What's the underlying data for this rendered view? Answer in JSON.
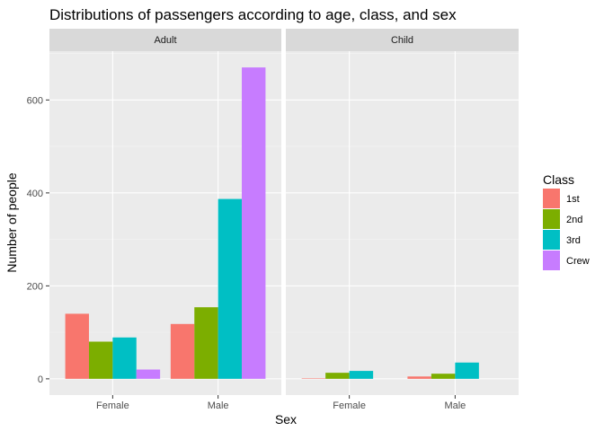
{
  "chart_data": {
    "type": "bar",
    "title": "Distributions of passengers according to age, class, and sex",
    "xlabel": "Sex",
    "ylabel": "Number of people",
    "ylim": [
      -35,
      705
    ],
    "yticks": [
      0,
      200,
      400,
      600
    ],
    "grid": true,
    "legend": {
      "title": "Class",
      "placement": "right"
    },
    "categories": [
      "Female",
      "Male"
    ],
    "facets": [
      {
        "label": "Adult",
        "series": [
          {
            "name": "1st",
            "color": "#F8766D",
            "values": [
              140,
              118
            ]
          },
          {
            "name": "2nd",
            "color": "#7CAE00",
            "values": [
              80,
              154
            ]
          },
          {
            "name": "3rd",
            "color": "#00BFC4",
            "values": [
              89,
              387
            ]
          },
          {
            "name": "Crew",
            "color": "#C77CFF",
            "values": [
              20,
              670
            ]
          }
        ]
      },
      {
        "label": "Child",
        "series": [
          {
            "name": "1st",
            "color": "#F8766D",
            "values": [
              1,
              5
            ]
          },
          {
            "name": "2nd",
            "color": "#7CAE00",
            "values": [
              13,
              11
            ]
          },
          {
            "name": "3rd",
            "color": "#00BFC4",
            "values": [
              17,
              35
            ]
          },
          {
            "name": "Crew",
            "color": "#C77CFF",
            "values": [
              0,
              0
            ]
          }
        ]
      }
    ]
  }
}
